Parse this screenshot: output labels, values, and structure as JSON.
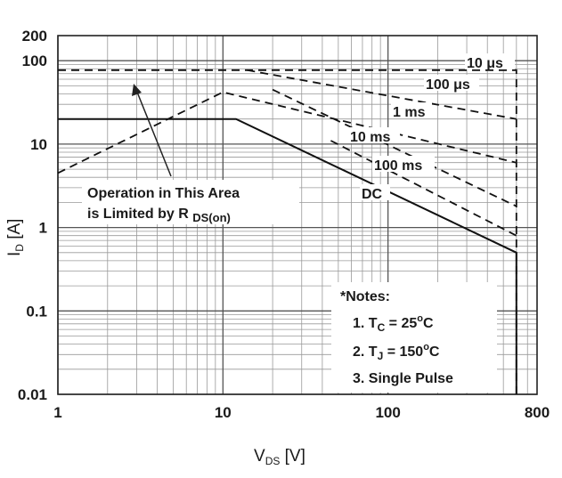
{
  "chart_data": {
    "type": "line",
    "scale": {
      "x": "log",
      "y": "log"
    },
    "xlim": [
      1,
      800
    ],
    "ylim": [
      0.01,
      200
    ],
    "grid": true,
    "x_ticks": [
      {
        "v": 1,
        "label": "1"
      },
      {
        "v": 10,
        "label": "10"
      },
      {
        "v": 100,
        "label": "100"
      },
      {
        "v": 800,
        "label": "800"
      }
    ],
    "y_ticks": [
      {
        "v": 200,
        "label": "200"
      },
      {
        "v": 100,
        "label": "100"
      },
      {
        "v": 10,
        "label": "10"
      },
      {
        "v": 1,
        "label": "1"
      },
      {
        "v": 0.1,
        "label": "0.1"
      },
      {
        "v": 0.01,
        "label": "0.01"
      }
    ],
    "xlabel": {
      "main": "V",
      "sub": "DS",
      "unit": " [V]"
    },
    "ylabel": {
      "main": "I",
      "sub": "D",
      "unit": " [A]"
    },
    "series": [
      {
        "name": "10 μs",
        "style": "dashed",
        "points": [
          [
            1,
            77
          ],
          [
            600,
            77
          ],
          [
            600,
            0.01
          ]
        ]
      },
      {
        "name": "100 μs",
        "style": "dashed",
        "points": [
          [
            14,
            77
          ],
          [
            600,
            20
          ]
        ]
      },
      {
        "name": "1 ms",
        "style": "dashed",
        "points": [
          [
            1,
            4.5
          ],
          [
            10,
            42
          ],
          [
            600,
            6
          ]
        ]
      },
      {
        "name": "10 ms",
        "style": "dashed",
        "points": [
          [
            600,
            1.8
          ]
        ]
      },
      {
        "name": "100 ms",
        "style": "dashed",
        "points": [
          [
            600,
            0.8
          ]
        ]
      },
      {
        "name": "DC",
        "style": "solid",
        "points": [
          [
            1,
            20
          ],
          [
            12,
            20
          ],
          [
            600,
            0.5
          ],
          [
            600,
            0.01
          ]
        ]
      }
    ],
    "labels": [
      {
        "id": "10us",
        "text": "10 μs"
      },
      {
        "id": "100us",
        "text": "100 μs"
      },
      {
        "id": "1ms",
        "text": "1 ms"
      },
      {
        "id": "10ms",
        "text": "10 ms"
      },
      {
        "id": "100ms",
        "text": "100 ms"
      },
      {
        "id": "dc",
        "text": "DC"
      }
    ],
    "annotation": {
      "line1": "Operation in This Area",
      "line2_prefix": "is Limited by R ",
      "line2_sub": "DS(on)"
    },
    "notes": {
      "title": "*Notes:",
      "n1": {
        "prefix": "1. T",
        "sub": "C",
        "mid": " = 25",
        "sup": "o",
        "suffix": "C"
      },
      "n2": {
        "prefix": "2. T",
        "sub": "J",
        "mid": " = 150",
        "sup": "o",
        "suffix": "C"
      },
      "n3": "3. Single Pulse"
    }
  }
}
